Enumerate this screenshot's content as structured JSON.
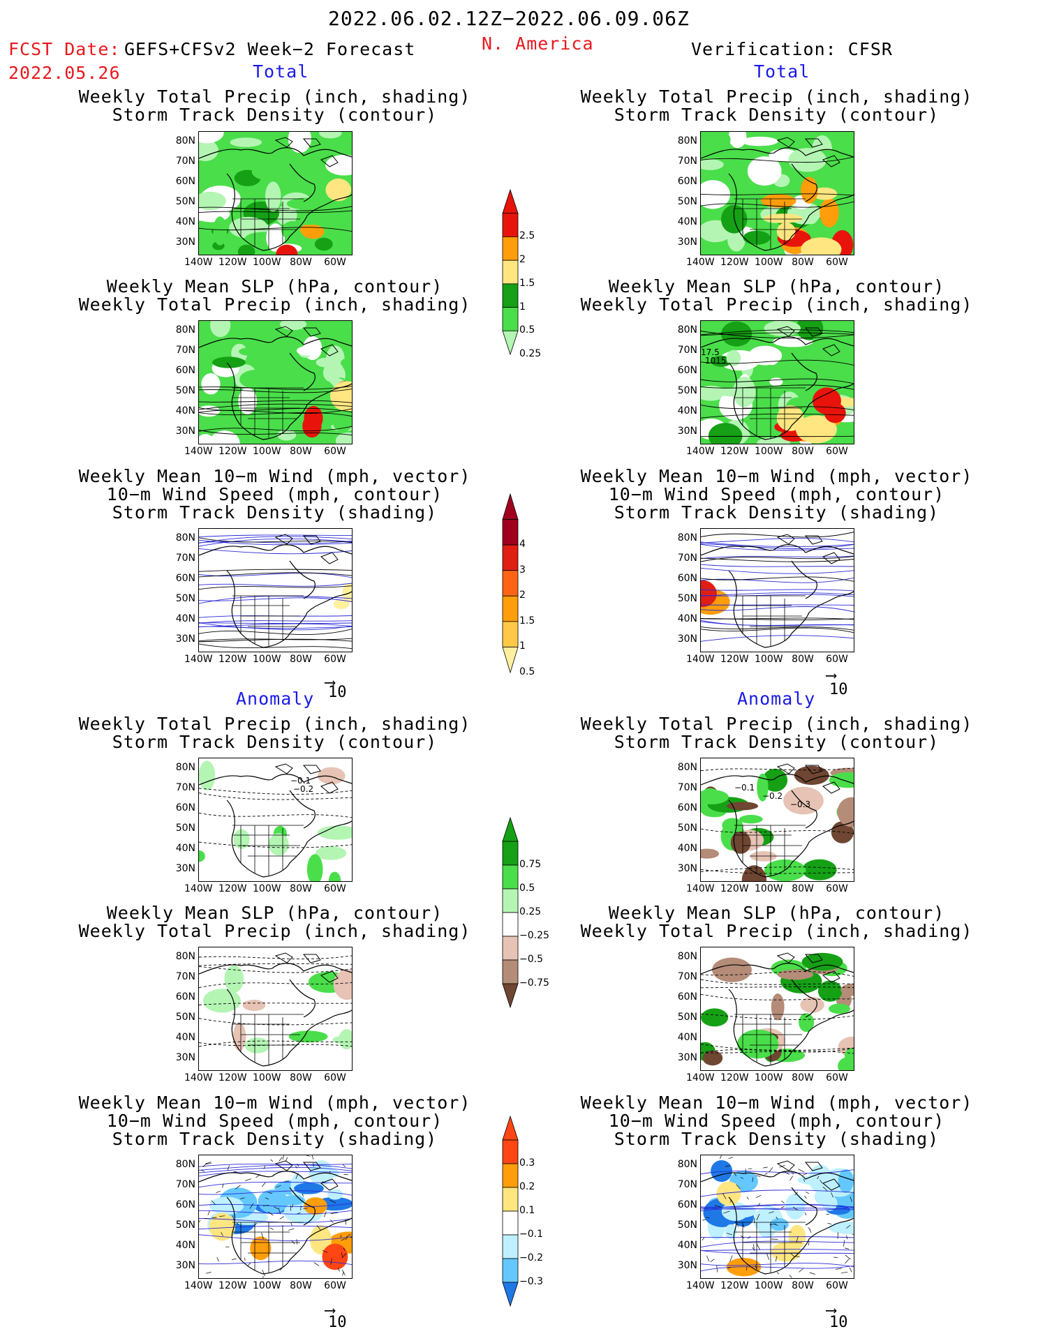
{
  "header": {
    "period": "2022.06.02.12Z−2022.06.09.06Z",
    "fcst_label": "FCST Date:",
    "fcst_model": "GEFS+CFSv2 Week−2 Forecast",
    "fcst_date": "2022.05.26",
    "region": "N. America",
    "verification": "Verification: CFSR"
  },
  "sections": {
    "total": "Total",
    "anomaly": "Anomaly"
  },
  "titles": {
    "precip_track": [
      "Weekly Total Precip (inch, shading)",
      "Storm Track Density (contour)"
    ],
    "slp_precip": [
      "Weekly Mean SLP (hPa, contour)",
      "Weekly Total Precip (inch, shading)"
    ],
    "wind": [
      "Weekly Mean 10−m Wind (mph, vector)",
      "10−m Wind Speed (mph, contour)",
      "Storm Track Density (shading)"
    ]
  },
  "axes": {
    "lat": [
      "80N",
      "70N",
      "60N",
      "50N",
      "40N",
      "30N"
    ],
    "lon": [
      "140W",
      "120W",
      "100W",
      "80W",
      "60W"
    ]
  },
  "vector_ref": "10",
  "colorbars": {
    "precip_total": {
      "labels": [
        "2.5",
        "2",
        "1.5",
        "1",
        "0.5",
        "0.25"
      ],
      "colors": [
        "#e8140c",
        "#ff9e0a",
        "#ffe680",
        "#15a015",
        "#4ade4a",
        "#b4f5b4"
      ]
    },
    "track_total": {
      "labels": [
        "4",
        "3",
        "2",
        "1.5",
        "1",
        "0.5"
      ],
      "colors": [
        "#a0001e",
        "#e01e14",
        "#ff6414",
        "#ff9e0a",
        "#ffc846",
        "#fff0a0"
      ]
    },
    "precip_anom": {
      "labels": [
        "0.75",
        "0.5",
        "0.25",
        "−0.25",
        "−0.5",
        "−0.75"
      ],
      "colors": [
        "#15a015",
        "#4ade4a",
        "#b4f5b4",
        "#ffffff",
        "#e6c3b4",
        "#b48c78",
        "#6e4632"
      ]
    },
    "track_anom": {
      "labels": [
        "0.3",
        "0.2",
        "0.1",
        "−0.1",
        "−0.2",
        "−0.3"
      ],
      "colors": [
        "#ff4614",
        "#ff9e0a",
        "#ffe680",
        "#ffffff",
        "#bef0ff",
        "#64c8ff",
        "#1e78e6"
      ]
    }
  },
  "contour_labels": {
    "fcst_anom_precip": [
      "−0.1",
      "−0.2"
    ],
    "ver_anom_precip": [
      "−0.1",
      "−0.2",
      "−0.3"
    ],
    "ver_slp": [
      "17.5",
      "1015"
    ]
  }
}
